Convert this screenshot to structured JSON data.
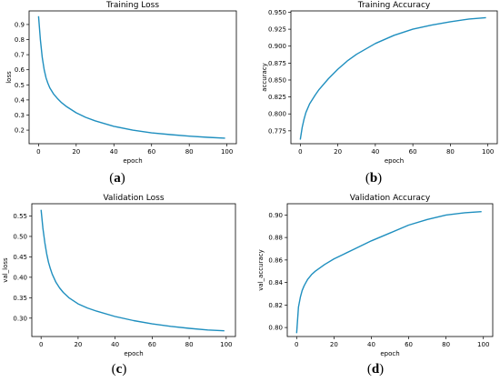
{
  "chart_data": [
    {
      "type": "line",
      "title": "Training Loss",
      "xlabel": "epoch",
      "ylabel": "loss",
      "caption": "a",
      "xlim": [
        -5,
        105
      ],
      "ylim": [
        0.11,
        0.99
      ],
      "xticks": [
        0,
        20,
        40,
        60,
        80,
        100
      ],
      "xtick_labels": [
        "0",
        "20",
        "40",
        "60",
        "80",
        "100"
      ],
      "yticks": [
        0.2,
        0.3,
        0.4,
        0.5,
        0.6,
        0.7,
        0.8,
        0.9
      ],
      "ytick_labels": [
        "0.2",
        "0.3",
        "0.4",
        "0.5",
        "0.6",
        "0.7",
        "0.8",
        "0.9"
      ],
      "grid": false,
      "color": "#1f8fbf",
      "series": [
        {
          "x": [
            0,
            1,
            2,
            3,
            4,
            5,
            6,
            8,
            10,
            12,
            15,
            20,
            25,
            30,
            40,
            50,
            60,
            70,
            80,
            90,
            99
          ],
          "values": [
            0.955,
            0.8,
            0.68,
            0.6,
            0.545,
            0.51,
            0.48,
            0.44,
            0.41,
            0.385,
            0.355,
            0.315,
            0.285,
            0.262,
            0.225,
            0.2,
            0.182,
            0.17,
            0.16,
            0.152,
            0.147
          ]
        }
      ]
    },
    {
      "type": "line",
      "title": "Training Accuracy",
      "xlabel": "epoch",
      "ylabel": "accuracy",
      "caption": "b",
      "xlim": [
        -5,
        105
      ],
      "ylim": [
        0.756,
        0.952
      ],
      "xticks": [
        0,
        20,
        40,
        60,
        80,
        100
      ],
      "xtick_labels": [
        "0",
        "20",
        "40",
        "60",
        "80",
        "100"
      ],
      "yticks": [
        0.775,
        0.8,
        0.825,
        0.85,
        0.875,
        0.9,
        0.925,
        0.95
      ],
      "ytick_labels": [
        "0.775",
        "0.800",
        "0.825",
        "0.850",
        "0.875",
        "0.900",
        "0.925",
        "0.950"
      ],
      "grid": false,
      "color": "#1f8fbf",
      "series": [
        {
          "x": [
            0,
            1,
            2,
            3,
            5,
            8,
            10,
            15,
            20,
            25,
            30,
            40,
            50,
            60,
            70,
            80,
            90,
            99
          ],
          "values": [
            0.762,
            0.78,
            0.792,
            0.802,
            0.815,
            0.828,
            0.836,
            0.852,
            0.866,
            0.878,
            0.888,
            0.904,
            0.916,
            0.925,
            0.931,
            0.936,
            0.94,
            0.942
          ]
        }
      ]
    },
    {
      "type": "line",
      "title": "Validation Loss",
      "xlabel": "epoch",
      "ylabel": "val_loss",
      "caption": "c",
      "xlim": [
        -5,
        105
      ],
      "ylim": [
        0.255,
        0.58
      ],
      "xticks": [
        0,
        20,
        40,
        60,
        80,
        100
      ],
      "xtick_labels": [
        "0",
        "20",
        "40",
        "60",
        "80",
        "100"
      ],
      "yticks": [
        0.3,
        0.35,
        0.4,
        0.45,
        0.5,
        0.55
      ],
      "ytick_labels": [
        "0.30",
        "0.35",
        "0.40",
        "0.45",
        "0.50",
        "0.55"
      ],
      "grid": false,
      "color": "#1f8fbf",
      "series": [
        {
          "x": [
            0,
            1,
            2,
            3,
            4,
            5,
            6,
            8,
            10,
            12,
            15,
            20,
            25,
            30,
            40,
            50,
            60,
            70,
            80,
            90,
            99
          ],
          "values": [
            0.565,
            0.52,
            0.485,
            0.458,
            0.437,
            0.421,
            0.408,
            0.388,
            0.374,
            0.363,
            0.35,
            0.335,
            0.325,
            0.317,
            0.304,
            0.294,
            0.286,
            0.28,
            0.275,
            0.271,
            0.269
          ]
        }
      ]
    },
    {
      "type": "line",
      "title": "Validation Accuracy",
      "xlabel": "epoch",
      "ylabel": "val_accuracy",
      "caption": "d",
      "xlim": [
        -5,
        105
      ],
      "ylim": [
        0.792,
        0.91
      ],
      "xticks": [
        0,
        20,
        40,
        60,
        80,
        100
      ],
      "xtick_labels": [
        "0",
        "20",
        "40",
        "60",
        "80",
        "100"
      ],
      "yticks": [
        0.8,
        0.82,
        0.84,
        0.86,
        0.88,
        0.9
      ],
      "ytick_labels": [
        "0.80",
        "0.82",
        "0.84",
        "0.86",
        "0.88",
        "0.90"
      ],
      "grid": false,
      "color": "#1f8fbf",
      "series": [
        {
          "x": [
            0,
            1,
            2,
            3,
            4,
            5,
            6,
            8,
            10,
            15,
            20,
            25,
            30,
            40,
            50,
            60,
            70,
            80,
            90,
            99
          ],
          "values": [
            0.795,
            0.818,
            0.827,
            0.833,
            0.837,
            0.84,
            0.843,
            0.847,
            0.85,
            0.856,
            0.861,
            0.865,
            0.869,
            0.877,
            0.884,
            0.891,
            0.896,
            0.9,
            0.902,
            0.903
          ]
        }
      ]
    }
  ]
}
